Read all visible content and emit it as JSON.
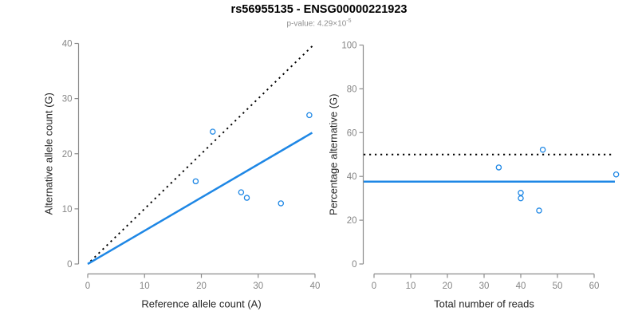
{
  "header": {
    "title": "rs56955135 - ENSG00000221923",
    "subtitle_text": "p-value: 4.29×10",
    "subtitle_exponent": "-5"
  },
  "colors": {
    "point_blue": "#1E87E5",
    "line_blue": "#1E87E5",
    "dotted_black": "#000000",
    "axis_gray": "#8C8C8C",
    "tick_label_gray": "#858585",
    "axis_title_dark": "#262626",
    "subtitle_gray": "#909090"
  },
  "chart_data": [
    {
      "type": "scatter",
      "panel": "left",
      "xlabel": "Reference allele count (A)",
      "ylabel": "Alternative allele count (G)",
      "xlim": [
        0,
        40
      ],
      "ylim": [
        0,
        40
      ],
      "xticks": [
        0,
        10,
        20,
        30,
        40
      ],
      "yticks": [
        0,
        10,
        20,
        30,
        40
      ],
      "grid": false,
      "points": [
        [
          19,
          15
        ],
        [
          22,
          24
        ],
        [
          27,
          13
        ],
        [
          28,
          12
        ],
        [
          34,
          11
        ],
        [
          39,
          27
        ]
      ],
      "lines": [
        {
          "name": "identity-line",
          "style": "dotted",
          "color": "#000000",
          "from": [
            0.5,
            0.5
          ],
          "to": [
            39.6,
            39.6
          ]
        },
        {
          "name": "fit-line",
          "style": "solid",
          "color": "#1E87E5",
          "from": [
            0,
            0
          ],
          "to": [
            39.5,
            23.8
          ]
        }
      ]
    },
    {
      "type": "scatter",
      "panel": "right",
      "xlabel": "Total number of reads",
      "ylabel": "Percentage alternative (G)",
      "xlim": [
        0,
        66
      ],
      "ylim": [
        0,
        100
      ],
      "xticks": [
        0,
        10,
        20,
        30,
        40,
        50,
        60
      ],
      "yticks": [
        0,
        20,
        40,
        60,
        80,
        100
      ],
      "grid": false,
      "points": [
        [
          34,
          44.1
        ],
        [
          40,
          32.5
        ],
        [
          40,
          30
        ],
        [
          45,
          24.4
        ],
        [
          46,
          52.2
        ],
        [
          66,
          40.9
        ]
      ],
      "lines": [
        {
          "name": "expected-line",
          "style": "dotted",
          "color": "#000000",
          "y": 50
        },
        {
          "name": "mean-line",
          "style": "solid",
          "color": "#1E87E5",
          "y": 37.6
        }
      ]
    }
  ]
}
